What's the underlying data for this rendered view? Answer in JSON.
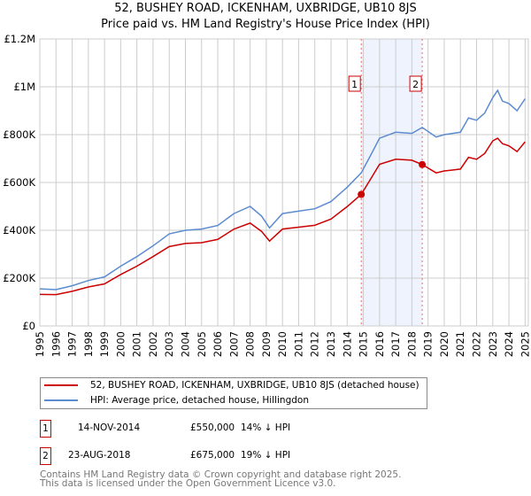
{
  "title_line1": "52, BUSHEY ROAD, ICKENHAM, UXBRIDGE, UB10 8JS",
  "title_line2": "Price paid vs. HM Land Registry's House Price Index (HPI)",
  "chart_data": {
    "type": "line",
    "title": "52, BUSHEY ROAD, ICKENHAM, UXBRIDGE, UB10 8JS - Price paid vs. HM Land Registry's House Price Index (HPI)",
    "xlim": [
      1995,
      2025.2
    ],
    "ylim": [
      0,
      1200000
    ],
    "x_ticks": [
      "1995",
      "1996",
      "1997",
      "1998",
      "1999",
      "2000",
      "2001",
      "2002",
      "2003",
      "2004",
      "2005",
      "2006",
      "2007",
      "2008",
      "2009",
      "2010",
      "2011",
      "2012",
      "2013",
      "2014",
      "2015",
      "2016",
      "2017",
      "2018",
      "2019",
      "2020",
      "2021",
      "2022",
      "2023",
      "2024",
      "2025"
    ],
    "y_ticks": [
      {
        "v": 0,
        "label": "£0"
      },
      {
        "v": 200000,
        "label": "£200K"
      },
      {
        "v": 400000,
        "label": "£400K"
      },
      {
        "v": 600000,
        "label": "£600K"
      },
      {
        "v": 800000,
        "label": "£800K"
      },
      {
        "v": 1000000,
        "label": "£1M"
      },
      {
        "v": 1200000,
        "label": "£1.2M"
      }
    ],
    "grid": true,
    "shaded_span": [
      2014.87,
      2018.64
    ],
    "series": [
      {
        "name": "HPI: Average price, detached house, Hillingdon",
        "color": "#5b8bd0",
        "x": [
          1995,
          1996,
          1997,
          1998,
          1999,
          2000,
          2001,
          2002,
          2003,
          2004,
          2005,
          2006,
          2007,
          2008,
          2008.7,
          2009.2,
          2010,
          2011,
          2012,
          2013,
          2014,
          2014.87,
          2015.5,
          2016,
          2017,
          2018,
          2018.64,
          2019.5,
          2020,
          2021,
          2021.5,
          2022,
          2022.5,
          2023,
          2023.3,
          2023.6,
          2024,
          2024.5,
          2025
        ],
        "y": [
          155000,
          152000,
          168000,
          190000,
          205000,
          250000,
          290000,
          335000,
          385000,
          400000,
          405000,
          420000,
          470000,
          500000,
          460000,
          410000,
          470000,
          480000,
          490000,
          520000,
          580000,
          640000,
          720000,
          785000,
          810000,
          805000,
          830000,
          790000,
          800000,
          810000,
          870000,
          860000,
          890000,
          955000,
          985000,
          940000,
          930000,
          900000,
          950000
        ]
      },
      {
        "name": "52, BUSHEY ROAD, ICKENHAM, UXBRIDGE, UB10 8JS (detached house)",
        "color": "#cc0000",
        "x": [
          1995,
          1996,
          1997,
          1998,
          1999,
          2000,
          2001,
          2002,
          2003,
          2004,
          2005,
          2006,
          2007,
          2008,
          2008.7,
          2009.2,
          2010,
          2011,
          2012,
          2013,
          2014,
          2014.87,
          2015.5,
          2016,
          2017,
          2018,
          2018.64,
          2019.5,
          2020,
          2021,
          2021.5,
          2022,
          2022.5,
          2023,
          2023.3,
          2023.6,
          2024,
          2024.5,
          2025
        ],
        "y": [
          132000,
          131000,
          145000,
          163000,
          176000,
          215000,
          250000,
          290000,
          332000,
          345000,
          348000,
          362000,
          405000,
          430000,
          396000,
          355000,
          405000,
          413000,
          421000,
          447000,
          499000,
          550000,
          620000,
          676000,
          697000,
          693000,
          675000,
          640000,
          648000,
          656000,
          705000,
          697000,
          721000,
          774000,
          785000,
          762000,
          753000,
          729000,
          770000
        ]
      }
    ],
    "sales": [
      {
        "label": "1",
        "x": 2014.87,
        "y": 550000
      },
      {
        "label": "2",
        "x": 2018.64,
        "y": 675000
      }
    ]
  },
  "legend": {
    "red": "52, BUSHEY ROAD, ICKENHAM, UXBRIDGE, UB10 8JS (detached house)",
    "blue": "HPI: Average price, detached house, Hillingdon"
  },
  "transactions": [
    {
      "num": "1",
      "date": "14-NOV-2014",
      "price": "£550,000",
      "hpi": "14% ↓ HPI"
    },
    {
      "num": "2",
      "date": "23-AUG-2018",
      "price": "£675,000",
      "hpi": "19% ↓ HPI"
    }
  ],
  "footer1": "Contains HM Land Registry data © Crown copyright and database right 2025.",
  "footer2": "This data is licensed under the Open Government Licence v3.0."
}
